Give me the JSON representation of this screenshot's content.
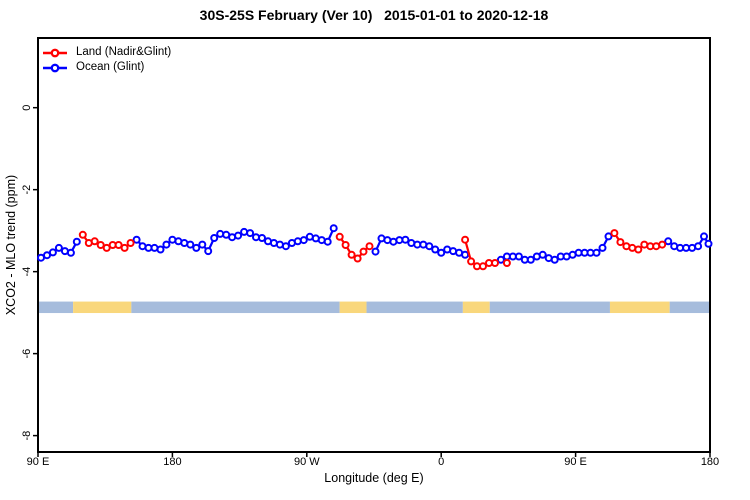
{
  "title": "30S-25S February (Ver 10)   2015-01-01 to 2020-12-18",
  "axes": {
    "x_label": "Longitude (deg E)",
    "y_label": "XCO2 - MLO trend (ppm)"
  },
  "chart_data": {
    "type": "line",
    "title": "30S-25S February (Ver 10)   2015-01-01 to 2020-12-18",
    "xlabel": "Longitude (deg E)",
    "ylabel": "XCO2 - MLO trend (ppm)",
    "grid": false,
    "legend_position": "top-left-inside",
    "x_axis": {
      "range_deg_east": [
        90,
        540
      ],
      "ticks": [
        {
          "pos": 90,
          "label": "90 E"
        },
        {
          "pos": 180,
          "label": "180"
        },
        {
          "pos": 270,
          "label": "90 W"
        },
        {
          "pos": 360,
          "label": "0"
        },
        {
          "pos": 450,
          "label": "90 E"
        },
        {
          "pos": 540,
          "label": "180"
        }
      ]
    },
    "y_axis": {
      "range_ppm": [
        1.7,
        -8.4
      ],
      "ticks": [
        {
          "pos": 0,
          "label": "0"
        },
        {
          "pos": -2,
          "label": "-2"
        },
        {
          "pos": -4,
          "label": "-4"
        },
        {
          "pos": -6,
          "label": "-6"
        },
        {
          "pos": -8,
          "label": "-8"
        }
      ]
    },
    "series": [
      {
        "name": "Land (Nadir&Glint)",
        "surface": "L",
        "color": "#ff0000",
        "marker": "open-circle"
      },
      {
        "name": "Ocean (Glint)",
        "surface": "O",
        "color": "#0000ff",
        "marker": "open-circle"
      }
    ],
    "points": [
      [
        92,
        -3.66,
        "O"
      ],
      [
        96,
        -3.6,
        "O"
      ],
      [
        100,
        -3.53,
        "O"
      ],
      [
        104,
        -3.42,
        "O"
      ],
      [
        108,
        -3.5,
        "O"
      ],
      [
        112,
        -3.54,
        "O"
      ],
      [
        116,
        -3.27,
        "O"
      ],
      [
        120,
        -3.1,
        "L"
      ],
      [
        124,
        -3.3,
        "L"
      ],
      [
        128,
        -3.26,
        "L"
      ],
      [
        132,
        -3.35,
        "L"
      ],
      [
        136,
        -3.42,
        "L"
      ],
      [
        140,
        -3.35,
        "L"
      ],
      [
        144,
        -3.35,
        "L"
      ],
      [
        148,
        -3.42,
        "L"
      ],
      [
        152,
        -3.3,
        "L"
      ],
      [
        156,
        -3.22,
        "O"
      ],
      [
        160,
        -3.38,
        "O"
      ],
      [
        164,
        -3.42,
        "O"
      ],
      [
        168,
        -3.42,
        "O"
      ],
      [
        172,
        -3.46,
        "O"
      ],
      [
        176,
        -3.34,
        "O"
      ],
      [
        180,
        -3.22,
        "O"
      ],
      [
        184,
        -3.26,
        "O"
      ],
      [
        188,
        -3.3,
        "O"
      ],
      [
        192,
        -3.34,
        "O"
      ],
      [
        196,
        -3.42,
        "O"
      ],
      [
        200,
        -3.34,
        "O"
      ],
      [
        204,
        -3.5,
        "O"
      ],
      [
        208,
        -3.18,
        "O"
      ],
      [
        212,
        -3.08,
        "O"
      ],
      [
        216,
        -3.1,
        "O"
      ],
      [
        220,
        -3.16,
        "O"
      ],
      [
        224,
        -3.12,
        "O"
      ],
      [
        228,
        -3.03,
        "O"
      ],
      [
        232,
        -3.06,
        "O"
      ],
      [
        236,
        -3.16,
        "O"
      ],
      [
        240,
        -3.18,
        "O"
      ],
      [
        244,
        -3.26,
        "O"
      ],
      [
        248,
        -3.3,
        "O"
      ],
      [
        252,
        -3.34,
        "O"
      ],
      [
        256,
        -3.38,
        "O"
      ],
      [
        260,
        -3.3,
        "O"
      ],
      [
        264,
        -3.26,
        "O"
      ],
      [
        268,
        -3.23,
        "O"
      ],
      [
        272,
        -3.15,
        "O"
      ],
      [
        276,
        -3.19,
        "O"
      ],
      [
        280,
        -3.23,
        "O"
      ],
      [
        284,
        -3.27,
        "O"
      ],
      [
        288,
        -2.94,
        "O"
      ],
      [
        292,
        -3.15,
        "L"
      ],
      [
        296,
        -3.35,
        "L"
      ],
      [
        300,
        -3.59,
        "L"
      ],
      [
        304,
        -3.68,
        "L"
      ],
      [
        308,
        -3.51,
        "L"
      ],
      [
        312,
        -3.38,
        "L"
      ],
      [
        316,
        -3.51,
        "O"
      ],
      [
        320,
        -3.19,
        "O"
      ],
      [
        324,
        -3.23,
        "O"
      ],
      [
        328,
        -3.27,
        "O"
      ],
      [
        332,
        -3.23,
        "O"
      ],
      [
        336,
        -3.22,
        "O"
      ],
      [
        340,
        -3.3,
        "O"
      ],
      [
        344,
        -3.34,
        "O"
      ],
      [
        348,
        -3.34,
        "O"
      ],
      [
        352,
        -3.38,
        "O"
      ],
      [
        356,
        -3.46,
        "O"
      ],
      [
        360,
        -3.54,
        "O"
      ],
      [
        364,
        -3.46,
        "O"
      ],
      [
        368,
        -3.5,
        "O"
      ],
      [
        372,
        -3.54,
        "O"
      ],
      [
        376,
        -3.22,
        "L"
      ],
      [
        376,
        -3.59,
        "O"
      ],
      [
        380,
        -3.75,
        "L"
      ],
      [
        384,
        -3.87,
        "L"
      ],
      [
        388,
        -3.87,
        "L"
      ],
      [
        392,
        -3.79,
        "L"
      ],
      [
        396,
        -3.79,
        "L"
      ],
      [
        400,
        -3.71,
        "O"
      ],
      [
        404,
        -3.79,
        "L"
      ],
      [
        404,
        -3.63,
        "O"
      ],
      [
        408,
        -3.63,
        "O"
      ],
      [
        412,
        -3.63,
        "O"
      ],
      [
        416,
        -3.71,
        "O"
      ],
      [
        420,
        -3.71,
        "O"
      ],
      [
        424,
        -3.63,
        "O"
      ],
      [
        428,
        -3.59,
        "O"
      ],
      [
        432,
        -3.67,
        "O"
      ],
      [
        436,
        -3.71,
        "O"
      ],
      [
        440,
        -3.63,
        "O"
      ],
      [
        444,
        -3.63,
        "O"
      ],
      [
        448,
        -3.59,
        "O"
      ],
      [
        452,
        -3.54,
        "O"
      ],
      [
        456,
        -3.54,
        "O"
      ],
      [
        460,
        -3.54,
        "O"
      ],
      [
        464,
        -3.54,
        "O"
      ],
      [
        468,
        -3.42,
        "O"
      ],
      [
        472,
        -3.14,
        "O"
      ],
      [
        476,
        -3.06,
        "L"
      ],
      [
        480,
        -3.28,
        "L"
      ],
      [
        484,
        -3.38,
        "L"
      ],
      [
        488,
        -3.42,
        "L"
      ],
      [
        492,
        -3.46,
        "L"
      ],
      [
        496,
        -3.34,
        "L"
      ],
      [
        500,
        -3.38,
        "L"
      ],
      [
        504,
        -3.38,
        "L"
      ],
      [
        508,
        -3.34,
        "L"
      ],
      [
        512,
        -3.26,
        "O"
      ],
      [
        516,
        -3.38,
        "O"
      ],
      [
        520,
        -3.42,
        "O"
      ],
      [
        524,
        -3.42,
        "O"
      ],
      [
        528,
        -3.42,
        "O"
      ],
      [
        532,
        -3.38,
        "O"
      ],
      [
        536,
        -3.14,
        "O"
      ],
      [
        539,
        -3.32,
        "O"
      ]
    ],
    "surface_band": {
      "description": "land/ocean surface indicator strip",
      "ppm_top": -4.73,
      "ppm_bottom": -5.01,
      "colors": {
        "land": "#f9d77c",
        "ocean": "#a6bcdc"
      },
      "segments": [
        {
          "from": 90,
          "to": 113.5,
          "surface": "ocean"
        },
        {
          "from": 113.5,
          "to": 152.5,
          "surface": "land"
        },
        {
          "from": 152.5,
          "to": 292,
          "surface": "ocean"
        },
        {
          "from": 292,
          "to": 310,
          "surface": "land"
        },
        {
          "from": 310,
          "to": 374.5,
          "surface": "ocean"
        },
        {
          "from": 374.5,
          "to": 392.5,
          "surface": "land"
        },
        {
          "from": 392.5,
          "to": 473,
          "surface": "ocean"
        },
        {
          "from": 473,
          "to": 513,
          "surface": "land"
        },
        {
          "from": 513,
          "to": 540,
          "surface": "ocean"
        }
      ]
    }
  }
}
